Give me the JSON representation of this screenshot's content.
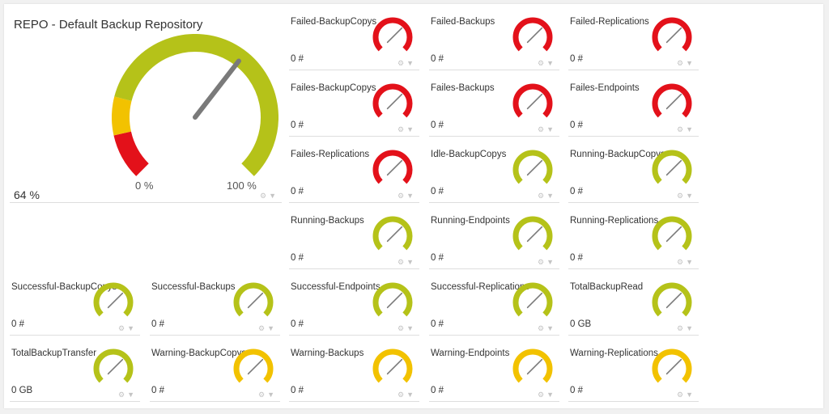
{
  "colors": {
    "red": "#e3111a",
    "green": "#b5c219",
    "yellow": "#f2c200",
    "needle": "#7a7a7a"
  },
  "main_gauge": {
    "title": "REPO - Default Backup Repository",
    "value": "64 %",
    "min_label": "0 %",
    "max_label": "100 %",
    "percent": 64
  },
  "sensors": [
    {
      "label": "Failed-BackupCopys",
      "value": "0 #",
      "status": "red"
    },
    {
      "label": "Failed-Backups",
      "value": "0 #",
      "status": "red"
    },
    {
      "label": "Failed-Replications",
      "value": "0 #",
      "status": "red"
    },
    {
      "label": "Failes-BackupCopys",
      "value": "0 #",
      "status": "red"
    },
    {
      "label": "Failes-Backups",
      "value": "0 #",
      "status": "red"
    },
    {
      "label": "Failes-Endpoints",
      "value": "0 #",
      "status": "red"
    },
    {
      "label": "Failes-Replications",
      "value": "0 #",
      "status": "red"
    },
    {
      "label": "Idle-BackupCopys",
      "value": "0 #",
      "status": "green"
    },
    {
      "label": "Running-BackupCopys",
      "value": "0 #",
      "status": "green"
    },
    {
      "label": "Running-Backups",
      "value": "0 #",
      "status": "green"
    },
    {
      "label": "Running-Endpoints",
      "value": "0 #",
      "status": "green"
    },
    {
      "label": "Running-Replications",
      "value": "0 #",
      "status": "green"
    },
    {
      "label": "Successful-BackupCopys",
      "value": "0 #",
      "status": "green"
    },
    {
      "label": "Successful-Backups",
      "value": "0 #",
      "status": "green"
    },
    {
      "label": "Successful-Endpoints",
      "value": "0 #",
      "status": "green"
    },
    {
      "label": "Successful-Replications",
      "value": "0 #",
      "status": "green"
    },
    {
      "label": "TotalBackupRead",
      "value": "0 GB",
      "status": "green"
    },
    {
      "label": "TotalBackupTransfer",
      "value": "0 GB",
      "status": "green"
    },
    {
      "label": "Warning-BackupCopys",
      "value": "0 #",
      "status": "yellow"
    },
    {
      "label": "Warning-Backups",
      "value": "0 #",
      "status": "yellow"
    },
    {
      "label": "Warning-Endpoints",
      "value": "0 #",
      "status": "yellow"
    },
    {
      "label": "Warning-Replications",
      "value": "0 #",
      "status": "yellow"
    }
  ],
  "tile_icons": {
    "settings": "gear-icon",
    "pin": "pin-icon"
  }
}
